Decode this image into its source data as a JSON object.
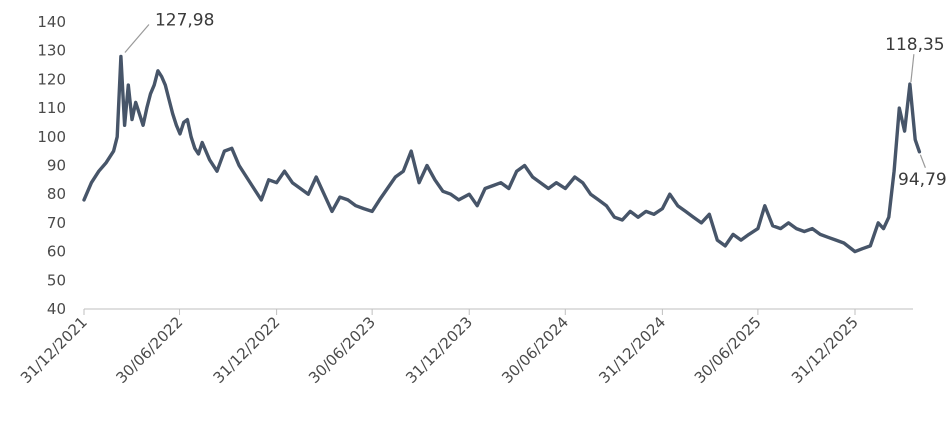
{
  "chart_data": {
    "type": "line",
    "title": "",
    "xlabel": "",
    "ylabel": "",
    "ylim": [
      40,
      140
    ],
    "y_ticks": [
      "40",
      "50",
      "60",
      "70",
      "80",
      "90",
      "100",
      "110",
      "120",
      "130",
      "140"
    ],
    "x_ticks": [
      {
        "label": "31/12/2021",
        "t": 0
      },
      {
        "label": "30/06/2022",
        "t": 181
      },
      {
        "label": "31/12/2022",
        "t": 365
      },
      {
        "label": "30/06/2023",
        "t": 546
      },
      {
        "label": "31/12/2023",
        "t": 730
      },
      {
        "label": "30/06/2024",
        "t": 912
      },
      {
        "label": "31/12/2024",
        "t": 1096
      },
      {
        "label": "30/06/2025",
        "t": 1277
      },
      {
        "label": "31/12/2025",
        "t": 1461
      }
    ],
    "grid": false,
    "legend": "none",
    "line_color": "#475569",
    "series": [
      {
        "x": [
          0,
          14,
          28,
          42,
          56,
          63,
          70,
          77,
          84,
          91,
          98,
          105,
          112,
          119,
          126,
          133,
          140,
          147,
          154,
          161,
          168,
          175,
          182,
          189,
          196,
          203,
          210,
          217,
          224,
          238,
          252,
          266,
          280,
          294,
          308,
          322,
          336,
          350,
          365,
          380,
          395,
          410,
          425,
          440,
          455,
          470,
          485,
          500,
          515,
          530,
          546,
          560,
          575,
          590,
          605,
          620,
          635,
          650,
          665,
          680,
          695,
          710,
          730,
          745,
          760,
          775,
          790,
          805,
          820,
          835,
          850,
          865,
          880,
          895,
          912,
          930,
          945,
          960,
          975,
          990,
          1005,
          1020,
          1035,
          1050,
          1065,
          1080,
          1096,
          1110,
          1125,
          1140,
          1155,
          1170,
          1185,
          1200,
          1215,
          1230,
          1245,
          1260,
          1277,
          1290,
          1305,
          1320,
          1335,
          1350,
          1365,
          1380,
          1395,
          1410,
          1425,
          1440,
          1461,
          1475,
          1490,
          1505,
          1515,
          1525,
          1535,
          1545,
          1555,
          1565,
          1575,
          1583
        ],
        "y": [
          78,
          84,
          88,
          91,
          95,
          100,
          127.98,
          104,
          118,
          106,
          112,
          108,
          104,
          110,
          115,
          118,
          123,
          121,
          118,
          113,
          108,
          104,
          101,
          105,
          106,
          100,
          96,
          94,
          98,
          92,
          88,
          95,
          96,
          90,
          86,
          82,
          78,
          85,
          84,
          88,
          84,
          82,
          80,
          86,
          80,
          74,
          79,
          78,
          76,
          75,
          74,
          78,
          82,
          86,
          88,
          95,
          84,
          90,
          85,
          81,
          80,
          78,
          80,
          76,
          82,
          83,
          84,
          82,
          88,
          90,
          86,
          84,
          82,
          84,
          82,
          86,
          84,
          80,
          78,
          76,
          72,
          71,
          74,
          72,
          74,
          73,
          75,
          80,
          76,
          74,
          72,
          70,
          73,
          64,
          62,
          66,
          64,
          66,
          68,
          76,
          69,
          68,
          70,
          68,
          67,
          68,
          66,
          65,
          64,
          63,
          60,
          61,
          62,
          70,
          68,
          72,
          88,
          110,
          102,
          118.35,
          99,
          94.79
        ]
      }
    ],
    "annotations": [
      {
        "text": "127,98",
        "x": 70,
        "y": 127.98
      },
      {
        "text": "118,35",
        "x": 1565,
        "y": 118.35
      },
      {
        "text": "94,79",
        "x": 1583,
        "y": 94.79
      }
    ]
  }
}
